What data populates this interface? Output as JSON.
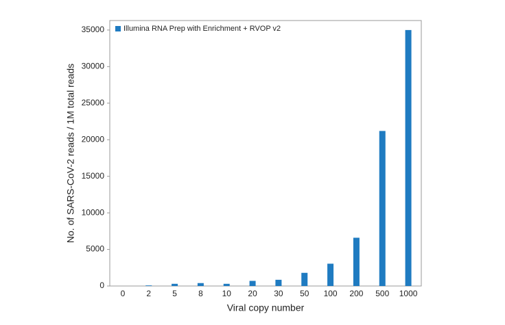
{
  "chart_data": {
    "type": "bar",
    "x_label": "Viral copy number",
    "y_label": "No. of SARS-CoV-2 reads / 1M total reads",
    "categories": [
      "0",
      "2",
      "5",
      "8",
      "10",
      "20",
      "30",
      "50",
      "100",
      "200",
      "500",
      "1000"
    ],
    "series": [
      {
        "name": "Illumina RNA Prep with Enrichment + RVOP v2",
        "color": "#1f7bc1",
        "values": [
          0,
          80,
          300,
          400,
          300,
          700,
          850,
          1800,
          3050,
          6600,
          21200,
          35000
        ]
      }
    ],
    "ylim": [
      0,
      36300
    ],
    "yticks": [
      0,
      5000,
      10000,
      15000,
      20000,
      25000,
      30000,
      35000
    ],
    "legend": "upper left"
  }
}
